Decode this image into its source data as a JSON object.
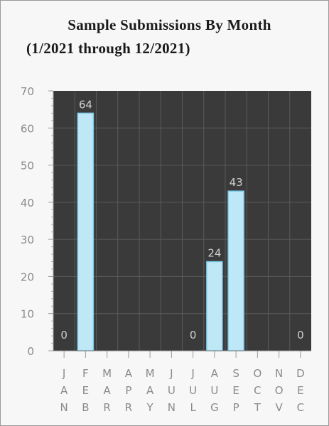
{
  "chart_data": {
    "type": "bar",
    "title": [
      "Sample Submissions By Month",
      "(1/2021 through 12/2021)"
    ],
    "categories": [
      "JAN",
      "FEB",
      "MAR",
      "APR",
      "MAY",
      "JUN",
      "JUL",
      "AUG",
      "SEP",
      "OCT",
      "NOV",
      "DEC"
    ],
    "values": [
      0,
      64,
      null,
      null,
      null,
      null,
      0,
      24,
      43,
      null,
      null,
      0
    ],
    "data_labels": [
      "0",
      "64",
      "",
      "",
      "",
      "",
      "0",
      "24",
      "43",
      "",
      "",
      "0"
    ],
    "ylim": [
      0,
      70
    ],
    "yticks": [
      0,
      10,
      20,
      30,
      40,
      50,
      60,
      70
    ],
    "xlabel": "",
    "ylabel": "",
    "grid": true,
    "colors": {
      "plot_background": "#3a3a3a",
      "bar_fill": "#bfe8f6",
      "bar_stroke": "#7ccbe9",
      "grid_line": "#5a5a5a",
      "label": "#8a8a8a",
      "data_label": "#d0d0d0"
    }
  }
}
